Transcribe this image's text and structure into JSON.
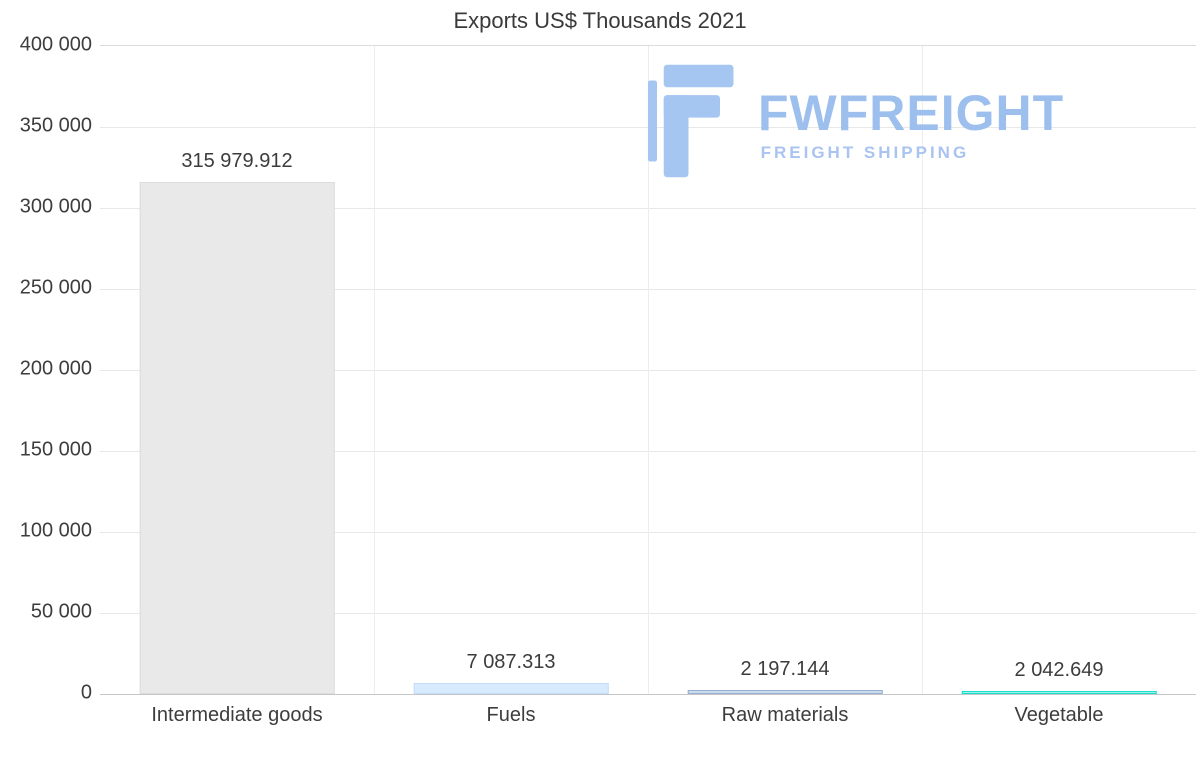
{
  "title": "Exports US$ Thousands 2021",
  "logo": {
    "name": "FWFREIGHT",
    "tagline": "FREIGHT SHIPPING",
    "color": "#a6c6f2"
  },
  "chart_data": {
    "type": "bar",
    "title": "Exports US$ Thousands 2021",
    "categories": [
      "Intermediate goods",
      "Fuels",
      "Raw materials",
      "Vegetable"
    ],
    "values": [
      315979.912,
      7087.313,
      2197.144,
      2042.649
    ],
    "value_labels": [
      "315 979.912",
      "7 087.313",
      "2 197.144",
      "2 042.649"
    ],
    "bar_colors": [
      {
        "fill": "#e9e9e9",
        "border": "#dcdcdc"
      },
      {
        "fill": "#d8eafd",
        "border": "#c3ddf9"
      },
      {
        "fill": "#cddcec",
        "border": "#94afd0"
      },
      {
        "fill": "#9ff3e9",
        "border": "#18dccc"
      }
    ],
    "xlabel": "",
    "ylabel": "",
    "ylim": [
      0,
      400000
    ],
    "ytick_step": 50000,
    "ytick_labels": [
      "0",
      "50 000",
      "100 000",
      "150 000",
      "200 000",
      "250 000",
      "300 000",
      "350 000",
      "400 000"
    ],
    "grid": true,
    "legend": false
  }
}
